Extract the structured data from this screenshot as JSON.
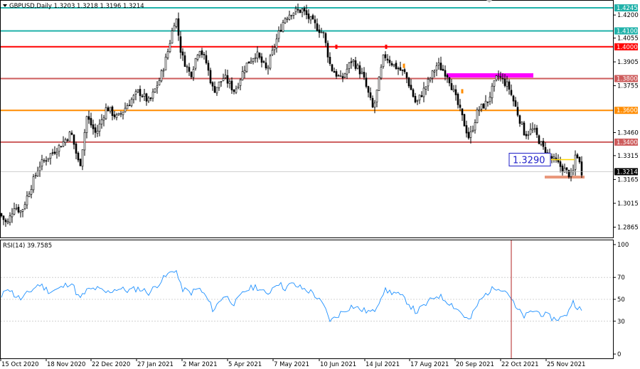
{
  "chart_data": [
    {
      "type": "candlestick",
      "symbol_header": "GBPUSD,Daily  1.3203 1.3218 1.3196 1.3214",
      "timeframe": "Daily",
      "ohlc_current": {
        "open": 1.3203,
        "high": 1.3218,
        "low": 1.3196,
        "close": 1.3214
      },
      "current_price_label": "1.3214",
      "ylim": [
        1.28,
        1.429
      ],
      "y_ticks": [
        {
          "label": "1.4200",
          "value": 1.42
        },
        {
          "label": "1.4055",
          "value": 1.4055
        },
        {
          "label": "1.3905",
          "value": 1.3905
        },
        {
          "label": "1.3755",
          "value": 1.3755
        },
        {
          "label": "1.3460",
          "value": 1.346
        },
        {
          "label": "1.3315",
          "value": 1.3315
        },
        {
          "label": "1.3165",
          "value": 1.3165
        },
        {
          "label": "1.3015",
          "value": 1.3015
        },
        {
          "label": "1.2865",
          "value": 1.2865
        }
      ],
      "levels": [
        {
          "label": "1.4245",
          "value": 1.4245,
          "color": "#20b2aa"
        },
        {
          "label": "1.4100",
          "value": 1.41,
          "color": "#20b2aa"
        },
        {
          "label": "1.4000",
          "value": 1.4,
          "color": "#ff0000"
        },
        {
          "label": "1.3800",
          "value": 1.38,
          "color": "#cd5c5c"
        },
        {
          "label": "1.3600",
          "value": 1.36,
          "color": "#ff8c00"
        },
        {
          "label": "1.3400",
          "value": 1.34,
          "color": "#cd5c5c"
        }
      ],
      "annotations": [
        {
          "text": "1.3290",
          "value": 1.329,
          "color": "#1e1ec8"
        }
      ],
      "zones": [
        {
          "name": "magenta-zone",
          "value": 1.382,
          "color": "#ff00ff"
        },
        {
          "name": "salmon-zone",
          "value": 1.318,
          "color": "#e9967a"
        }
      ],
      "x_tick_labels": [
        "15 Oct 2020",
        "18 Nov 2020",
        "22 Dec 2020",
        "27 Jan 2021",
        "2 Mar 2021",
        "5 Apr 2021",
        "7 May 2021",
        "10 Jun 2021",
        "14 Jul 2021",
        "17 Aug 2021",
        "20 Sep 2021",
        "22 Oct 2021",
        "25 Nov 2021"
      ],
      "path": [
        [
          0,
          1.295
        ],
        [
          10,
          1.288
        ],
        [
          20,
          1.3
        ],
        [
          30,
          1.296
        ],
        [
          40,
          1.308
        ],
        [
          55,
          1.325
        ],
        [
          70,
          1.332
        ],
        [
          85,
          1.338
        ],
        [
          100,
          1.346
        ],
        [
          112,
          1.324
        ],
        [
          122,
          1.356
        ],
        [
          135,
          1.345
        ],
        [
          150,
          1.362
        ],
        [
          165,
          1.355
        ],
        [
          180,
          1.364
        ],
        [
          195,
          1.372
        ],
        [
          210,
          1.365
        ],
        [
          225,
          1.38
        ],
        [
          235,
          1.395
        ],
        [
          247,
          1.42
        ],
        [
          255,
          1.395
        ],
        [
          268,
          1.382
        ],
        [
          280,
          1.4
        ],
        [
          290,
          1.39
        ],
        [
          300,
          1.372
        ],
        [
          315,
          1.381
        ],
        [
          330,
          1.372
        ],
        [
          345,
          1.388
        ],
        [
          360,
          1.396
        ],
        [
          375,
          1.385
        ],
        [
          390,
          1.406
        ],
        [
          400,
          1.418
        ],
        [
          410,
          1.422
        ],
        [
          425,
          1.423
        ],
        [
          440,
          1.415
        ],
        [
          455,
          1.408
        ],
        [
          465,
          1.387
        ],
        [
          480,
          1.379
        ],
        [
          495,
          1.392
        ],
        [
          510,
          1.382
        ],
        [
          525,
          1.36
        ],
        [
          540,
          1.395
        ],
        [
          555,
          1.388
        ],
        [
          570,
          1.383
        ],
        [
          585,
          1.364
        ],
        [
          600,
          1.376
        ],
        [
          615,
          1.389
        ],
        [
          630,
          1.382
        ],
        [
          645,
          1.362
        ],
        [
          660,
          1.342
        ],
        [
          672,
          1.36
        ],
        [
          685,
          1.365
        ],
        [
          700,
          1.382
        ],
        [
          715,
          1.375
        ],
        [
          725,
          1.362
        ],
        [
          738,
          1.345
        ],
        [
          750,
          1.348
        ],
        [
          765,
          1.335
        ],
        [
          780,
          1.328
        ],
        [
          795,
          1.322
        ],
        [
          805,
          1.318
        ],
        [
          810,
          1.335
        ],
        [
          818,
          1.3214
        ]
      ]
    },
    {
      "type": "line",
      "title": "RSI(14) 39.7585",
      "ylim": [
        0,
        100
      ],
      "y_ticks": [
        {
          "label": "100",
          "value": 100
        },
        {
          "label": "70",
          "value": 70
        },
        {
          "label": "50",
          "value": 50
        },
        {
          "label": "30",
          "value": 30
        },
        {
          "label": "0",
          "value": 0
        }
      ],
      "series": [
        {
          "color": "#1e90ff",
          "points": [
            [
              0,
              48
            ],
            [
              10,
              62
            ],
            [
              20,
              54
            ],
            [
              30,
              50
            ],
            [
              40,
              56
            ],
            [
              55,
              64
            ],
            [
              70,
              57
            ],
            [
              85,
              60
            ],
            [
              100,
              66
            ],
            [
              112,
              50
            ],
            [
              122,
              58
            ],
            [
              135,
              60
            ],
            [
              150,
              56
            ],
            [
              165,
              60
            ],
            [
              180,
              58
            ],
            [
              195,
              60
            ],
            [
              210,
              56
            ],
            [
              225,
              66
            ],
            [
              235,
              72
            ],
            [
              247,
              78
            ],
            [
              255,
              60
            ],
            [
              268,
              56
            ],
            [
              280,
              60
            ],
            [
              290,
              52
            ],
            [
              300,
              40
            ],
            [
              315,
              54
            ],
            [
              330,
              46
            ],
            [
              345,
              58
            ],
            [
              360,
              62
            ],
            [
              375,
              54
            ],
            [
              390,
              66
            ],
            [
              400,
              60
            ],
            [
              410,
              64
            ],
            [
              425,
              60
            ],
            [
              440,
              56
            ],
            [
              455,
              44
            ],
            [
              465,
              30
            ],
            [
              480,
              38
            ],
            [
              495,
              44
            ],
            [
              510,
              40
            ],
            [
              525,
              38
            ],
            [
              540,
              58
            ],
            [
              555,
              56
            ],
            [
              570,
              50
            ],
            [
              585,
              38
            ],
            [
              600,
              46
            ],
            [
              615,
              54
            ],
            [
              630,
              48
            ],
            [
              645,
              40
            ],
            [
              660,
              30
            ],
            [
              672,
              46
            ],
            [
              685,
              56
            ],
            [
              700,
              62
            ],
            [
              715,
              56
            ],
            [
              725,
              42
            ],
            [
              738,
              34
            ],
            [
              750,
              40
            ],
            [
              765,
              36
            ],
            [
              780,
              32
            ],
            [
              795,
              34
            ],
            [
              805,
              48
            ],
            [
              818,
              39.76
            ]
          ]
        }
      ]
    }
  ]
}
